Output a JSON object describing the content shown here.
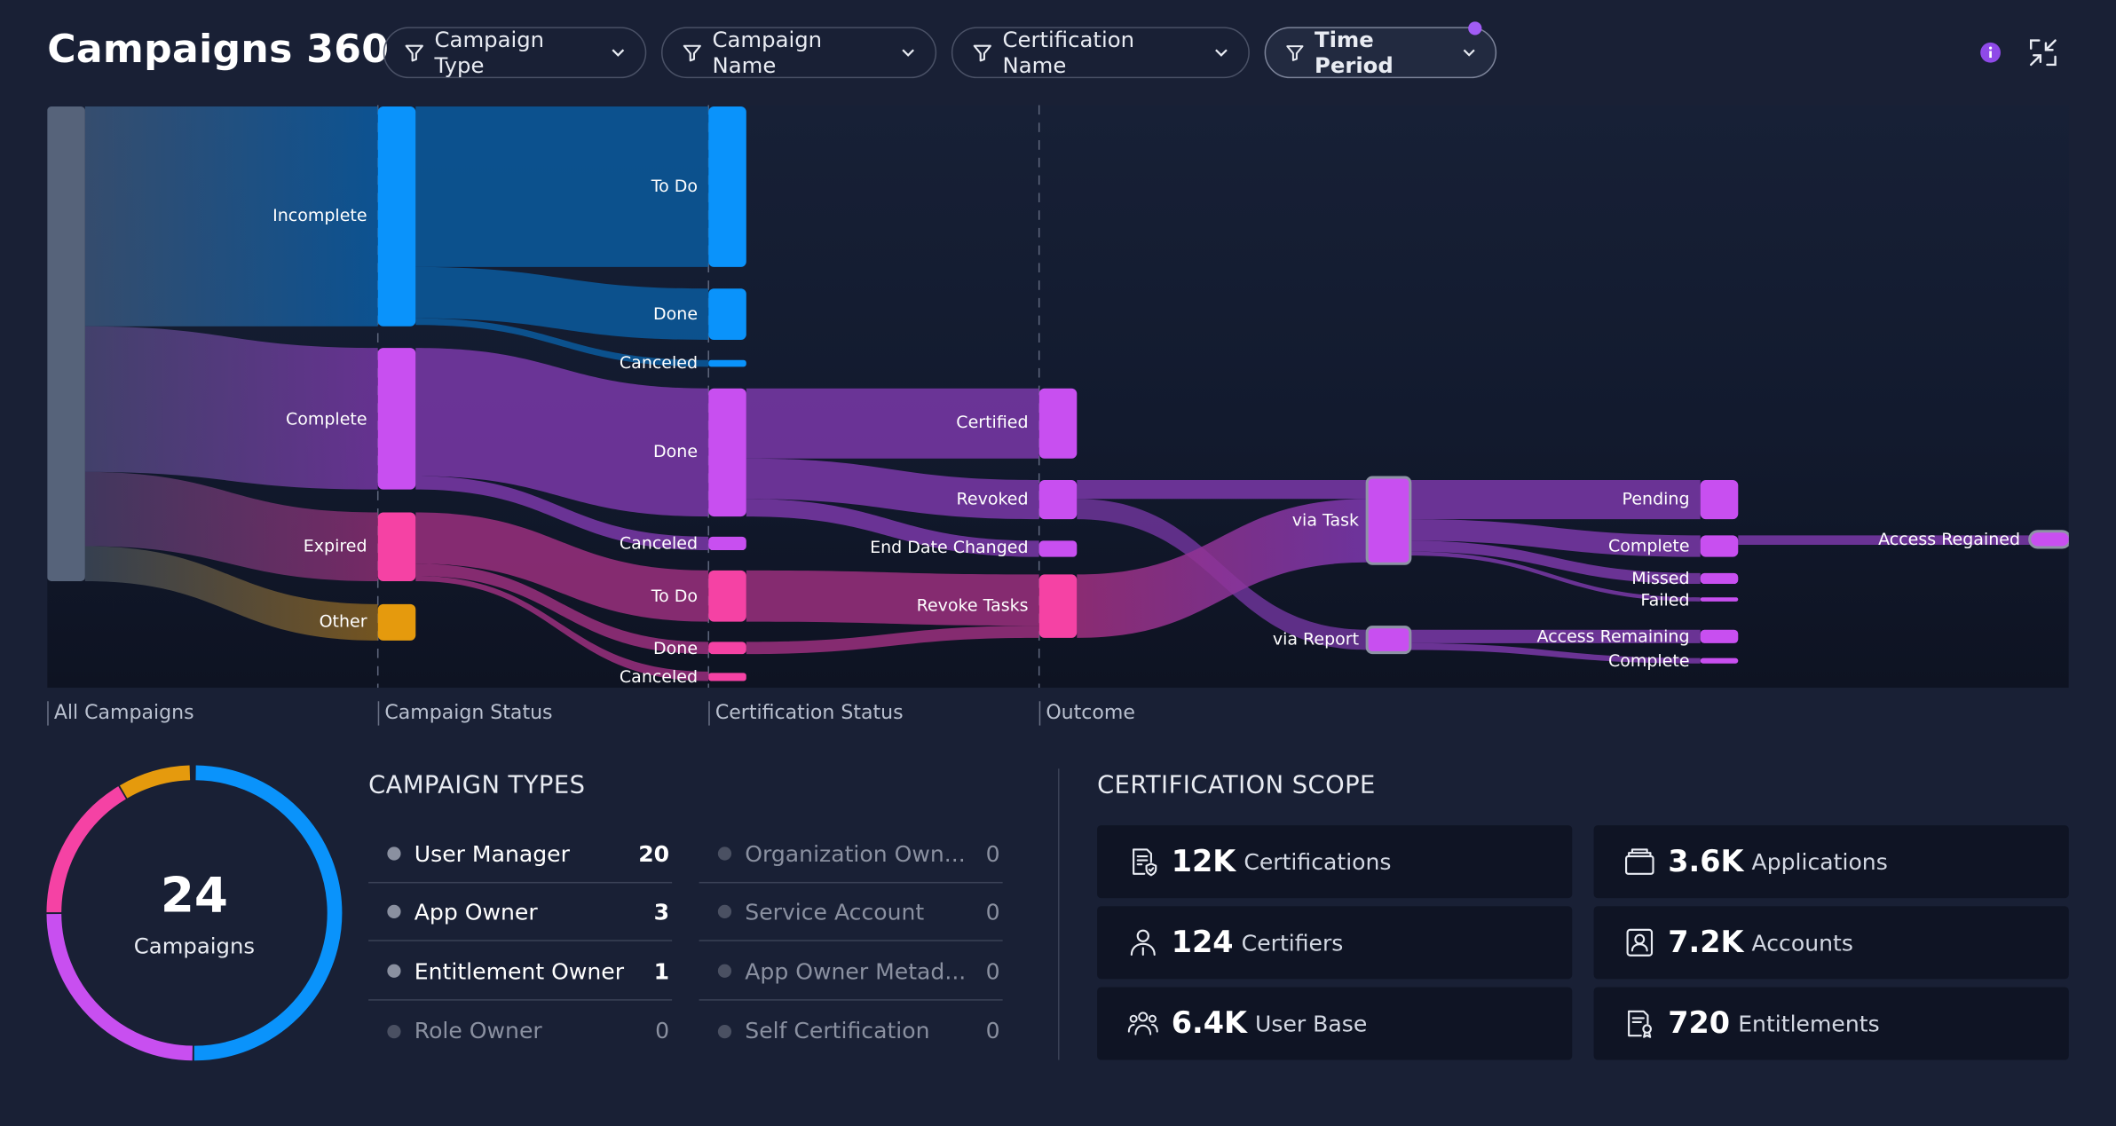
{
  "header": {
    "title": "Campaigns 360",
    "filters": [
      {
        "label": "Campaign Type"
      },
      {
        "label": "Campaign Name"
      },
      {
        "label": "Certification Name"
      },
      {
        "label": "Time Period"
      }
    ]
  },
  "colors": {
    "background": "#192035",
    "chart_bg": "#111727",
    "blue": "#0a93fb",
    "purple": "#c84ff0",
    "pink": "#f542a4",
    "orange": "#e59a0d",
    "gray": "#56637a"
  },
  "sankey": {
    "columns": [
      "All Campaigns",
      "Campaign Status",
      "Certification Status",
      "Outcome"
    ],
    "nodes": {
      "incomplete": "Incomplete",
      "complete": "Complete",
      "expired": "Expired",
      "other": "Other",
      "todo1": "To Do",
      "done1": "Done",
      "canceled1": "Canceled",
      "done2": "Done",
      "canceled2": "Canceled",
      "todo3": "To Do",
      "done3": "Done",
      "canceled3": "Canceled",
      "certified": "Certified",
      "revoked": "Revoked",
      "enddate": "End Date Changed",
      "revoketasks": "Revoke Tasks",
      "viatask": "via Task",
      "viareport": "via Report",
      "pending": "Pending",
      "complete2": "Complete",
      "missed": "Missed",
      "failed": "Failed",
      "accessremaining": "Access Remaining",
      "complete3": "Complete",
      "accessregained": "Access Regained"
    }
  },
  "summary": {
    "total": "24",
    "total_label": "Campaigns"
  },
  "campaign_types": {
    "title": "CAMPAIGN TYPES",
    "left": [
      {
        "name": "User Manager",
        "count": "20"
      },
      {
        "name": "App Owner",
        "count": "3"
      },
      {
        "name": "Entitlement Owner",
        "count": "1"
      },
      {
        "name": "Role Owner",
        "count": "0"
      }
    ],
    "right": [
      {
        "name": "Organization Own...",
        "count": "0"
      },
      {
        "name": "Service Account",
        "count": "0"
      },
      {
        "name": "App Owner Metad...",
        "count": "0"
      },
      {
        "name": "Self Certification",
        "count": "0"
      }
    ]
  },
  "scope": {
    "title": "CERTIFICATION SCOPE",
    "items": [
      {
        "value": "12K",
        "label": "Certifications",
        "icon": "certification-icon"
      },
      {
        "value": "3.6K",
        "label": "Applications",
        "icon": "applications-icon"
      },
      {
        "value": "124",
        "label": "Certifiers",
        "icon": "person-icon"
      },
      {
        "value": "7.2K",
        "label": "Accounts",
        "icon": "account-icon"
      },
      {
        "value": "6.4K",
        "label": "User Base",
        "icon": "group-icon"
      },
      {
        "value": "720",
        "label": "Entitlements",
        "icon": "entitlement-icon"
      }
    ]
  }
}
